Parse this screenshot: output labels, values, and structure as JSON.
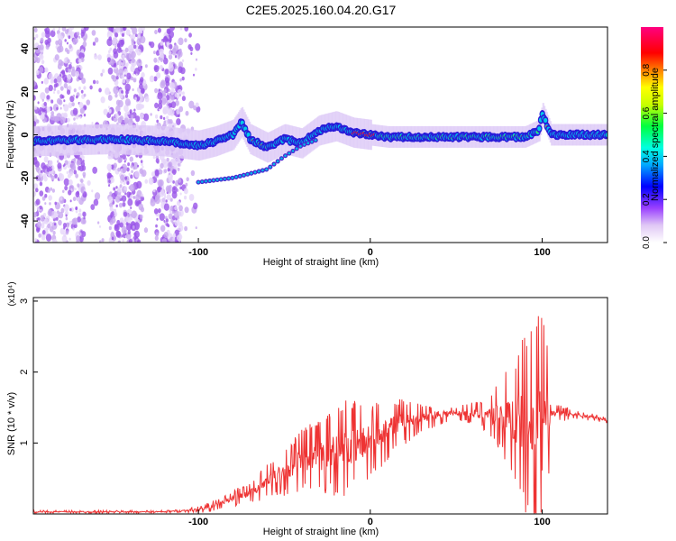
{
  "figure_title": "C2E5.2025.160.04.20.G17",
  "chart_data": [
    {
      "type": "heatmap",
      "xlabel": "Height of straight line (km)",
      "ylabel": "Frequency (Hz)",
      "xlim": [
        -196,
        138
      ],
      "ylim": [
        -50,
        50
      ],
      "xticks": [
        -100,
        0,
        100
      ],
      "xtick_labels": [
        "-100",
        "0",
        "100"
      ],
      "yticks": [
        -40,
        -20,
        0,
        20,
        40
      ],
      "ytick_labels": [
        "-40",
        "-20",
        "0",
        "20",
        "40"
      ],
      "grid": false,
      "colorbar": {
        "label": "Normalized spectral amplitude",
        "range": [
          0,
          1
        ],
        "ticks": [
          0.0,
          0.2,
          0.4,
          0.6,
          0.8
        ],
        "tick_labels": [
          "0.0",
          "0.2",
          "0.4",
          "0.6",
          "0.8"
        ]
      },
      "main_trace": [
        [
          -196,
          -3
        ],
        [
          -150,
          -2
        ],
        [
          -120,
          -3
        ],
        [
          -100,
          -5
        ],
        [
          -90,
          -3
        ],
        [
          -80,
          0
        ],
        [
          -75,
          6
        ],
        [
          -70,
          -2
        ],
        [
          -60,
          -6
        ],
        [
          -50,
          -2
        ],
        [
          -40,
          -4
        ],
        [
          -30,
          2
        ],
        [
          -20,
          4
        ],
        [
          -10,
          1
        ],
        [
          0,
          0
        ],
        [
          10,
          -1
        ],
        [
          40,
          -1
        ],
        [
          70,
          -1
        ],
        [
          90,
          -1
        ],
        [
          98,
          2
        ],
        [
          100,
          10
        ],
        [
          105,
          0
        ],
        [
          138,
          0
        ]
      ],
      "secondary_trace": [
        [
          -100,
          -22
        ],
        [
          -80,
          -20
        ],
        [
          -70,
          -18
        ],
        [
          -60,
          -16
        ],
        [
          -50,
          -10
        ],
        [
          -40,
          -5
        ],
        [
          -30,
          -2
        ]
      ]
    },
    {
      "type": "line",
      "xlabel": "Height of straight line (km)",
      "ylabel": "SNR (10 * v/v)",
      "y_multiplier_label": "(x10⁴)",
      "xlim": [
        -196,
        138
      ],
      "ylim": [
        0,
        3.05
      ],
      "xticks": [
        -100,
        0,
        100
      ],
      "xtick_labels": [
        "-100",
        "0",
        "100"
      ],
      "yticks": [
        1,
        2,
        3
      ],
      "ytick_labels": [
        "1",
        "2",
        "3"
      ],
      "grid": false,
      "series": [
        {
          "color": "#ee3333",
          "envelope": [
            [
              -196,
              0.03
            ],
            [
              -120,
              0.03
            ],
            [
              -100,
              0.06
            ],
            [
              -90,
              0.12
            ],
            [
              -80,
              0.22
            ],
            [
              -70,
              0.3
            ],
            [
              -60,
              0.45
            ],
            [
              -50,
              0.6
            ],
            [
              -40,
              0.75
            ],
            [
              -30,
              0.8
            ],
            [
              -20,
              0.9
            ],
            [
              -10,
              0.95
            ],
            [
              0,
              1.05
            ],
            [
              10,
              1.2
            ],
            [
              20,
              1.3
            ],
            [
              30,
              1.35
            ],
            [
              40,
              1.4
            ],
            [
              50,
              1.42
            ],
            [
              60,
              1.42
            ],
            [
              70,
              1.4
            ],
            [
              80,
              1.35
            ],
            [
              90,
              1.3
            ],
            [
              100,
              1.2
            ],
            [
              105,
              1.4
            ],
            [
              110,
              1.42
            ],
            [
              120,
              1.4
            ],
            [
              130,
              1.36
            ],
            [
              138,
              1.32
            ]
          ],
          "spread": [
            [
              -196,
              0.02
            ],
            [
              -110,
              0.02
            ],
            [
              -90,
              0.08
            ],
            [
              -70,
              0.15
            ],
            [
              -50,
              0.35
            ],
            [
              -30,
              0.55
            ],
            [
              -15,
              0.7
            ],
            [
              0,
              0.55
            ],
            [
              15,
              0.4
            ],
            [
              30,
              0.2
            ],
            [
              50,
              0.1
            ],
            [
              65,
              0.2
            ],
            [
              80,
              0.7
            ],
            [
              90,
              1.3
            ],
            [
              95,
              1.6
            ],
            [
              100,
              1.7
            ],
            [
              103,
              1.1
            ],
            [
              106,
              0.15
            ],
            [
              120,
              0.06
            ],
            [
              138,
              0.05
            ]
          ]
        }
      ]
    }
  ]
}
